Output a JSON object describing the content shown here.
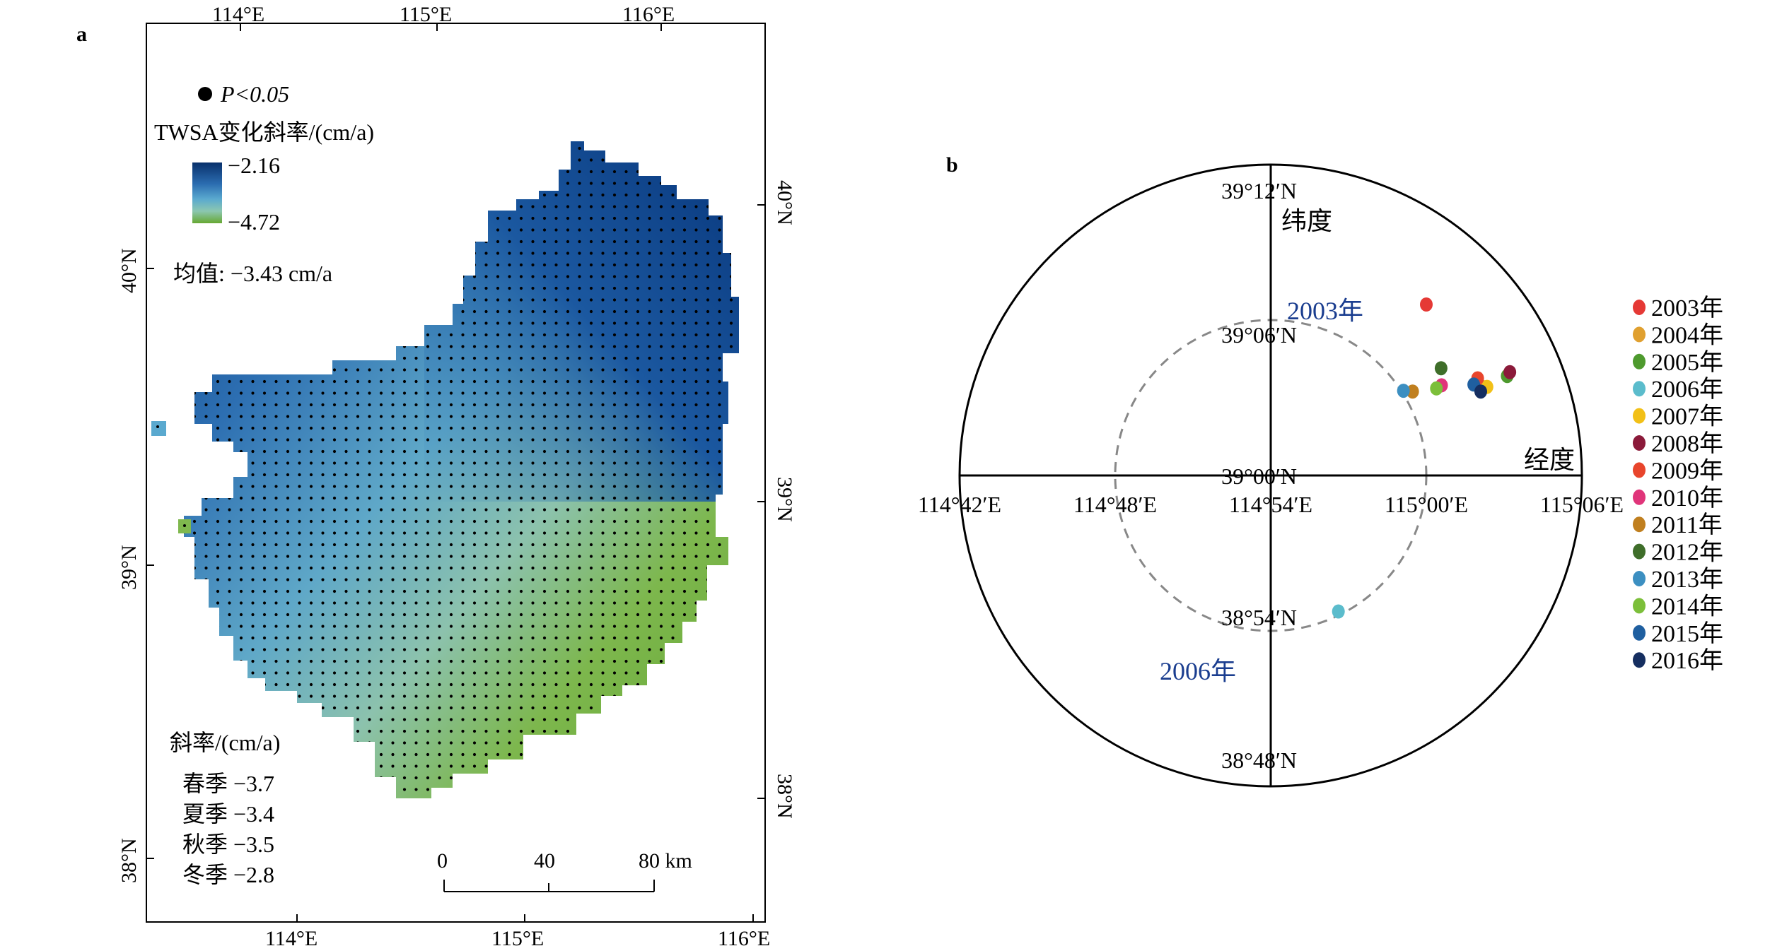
{
  "panel_a": {
    "label": "a",
    "legend": {
      "significance": "P<0.05",
      "colorbar_title": "TWSA变化斜率/(cm/a)",
      "colorbar_max": "−2.16",
      "colorbar_min": "−4.72",
      "colors": [
        "#08306b",
        "#2b6cb0",
        "#5aa9cf",
        "#8cc7b0",
        "#7fb84e",
        "#66a832"
      ],
      "mean_text": "均值: −3.43 cm/a"
    },
    "slope_box": {
      "title": "斜率/(cm/a)",
      "rows": [
        "春季 −3.7",
        "夏季 −3.4",
        "秋季 −3.5",
        "冬季 −2.8"
      ]
    },
    "scalebar": {
      "ticks": [
        "0",
        "40",
        "80 km"
      ]
    },
    "axes": {
      "top_ticks": [
        "114°E",
        "115°E",
        "116°E"
      ],
      "bottom_ticks": [
        "114°E",
        "115°E",
        "116°E"
      ],
      "left_ticks": [
        "40°N",
        "39°N",
        "38°N"
      ],
      "right_ticks": [
        "40°N",
        "39°N",
        "38°N"
      ]
    }
  },
  "chart_data": [
    {
      "type": "heatmap",
      "panel": "a",
      "variable": "TWSA变化斜率",
      "unit": "cm/a",
      "color_range": [
        -4.72,
        -2.16
      ],
      "mean": -3.43,
      "seasonal_slopes": [
        {
          "season": "春季",
          "value": -3.7
        },
        {
          "season": "夏季",
          "value": -3.4
        },
        {
          "season": "秋季",
          "value": -3.5
        },
        {
          "season": "冬季",
          "value": -2.8
        }
      ],
      "notes": "gridded field; dots mark P<0.05"
    },
    {
      "type": "scatter",
      "panel": "b",
      "label": "b",
      "xlabel": "经度",
      "ylabel": "纬度",
      "xlim": [
        114.7,
        115.1
      ],
      "ylim": [
        38.8,
        39.2
      ],
      "x_ticks": [
        "114°42′E",
        "114°48′E",
        "114°54′E",
        "115°00′E",
        "115°06′E"
      ],
      "y_ticks": [
        "39°12′N",
        "39°06′N",
        "39°00′N",
        "38°54′N",
        "38°48′N"
      ],
      "annotations": [
        {
          "text": "2003年",
          "year": "2003年"
        },
        {
          "text": "2006年",
          "year": "2006年"
        }
      ],
      "points": [
        {
          "year": "2003年",
          "lon": 115.0,
          "lat": 39.11,
          "color": "#e53935"
        },
        {
          "year": "2004年",
          "lon": 115.036,
          "lat": 39.057,
          "color": "#e0a030"
        },
        {
          "year": "2005年",
          "lon": 115.052,
          "lat": 39.064,
          "color": "#4e9a2e"
        },
        {
          "year": "2006年",
          "lon": 114.9435,
          "lat": 38.9125,
          "color": "#5bbccc"
        },
        {
          "year": "2007年",
          "lon": 115.039,
          "lat": 39.057,
          "color": "#f2c017"
        },
        {
          "year": "2008年",
          "lon": 115.0537,
          "lat": 39.0665,
          "color": "#8b1a3a"
        },
        {
          "year": "2009年",
          "lon": 115.033,
          "lat": 39.0625,
          "color": "#e8452c"
        },
        {
          "year": "2010年",
          "lon": 115.0098,
          "lat": 39.058,
          "color": "#e0357a"
        },
        {
          "year": "2011年",
          "lon": 114.9912,
          "lat": 39.054,
          "color": "#c07f1f"
        },
        {
          "year": "2012年",
          "lon": 115.0095,
          "lat": 39.069,
          "color": "#3f6e2a"
        },
        {
          "year": "2013年",
          "lon": 114.9853,
          "lat": 39.0545,
          "color": "#3c8fc1"
        },
        {
          "year": "2014年",
          "lon": 115.0065,
          "lat": 39.056,
          "color": "#7cbf3a"
        },
        {
          "year": "2015年",
          "lon": 115.0305,
          "lat": 39.0585,
          "color": "#1f5fa0"
        },
        {
          "year": "2016年",
          "lon": 115.035,
          "lat": 39.054,
          "color": "#152e60"
        }
      ],
      "legend": [
        "2003年",
        "2004年",
        "2005年",
        "2006年",
        "2007年",
        "2008年",
        "2009年",
        "2010年",
        "2011年",
        "2012年",
        "2013年",
        "2014年",
        "2015年",
        "2016年"
      ],
      "legend_position": "right"
    }
  ]
}
